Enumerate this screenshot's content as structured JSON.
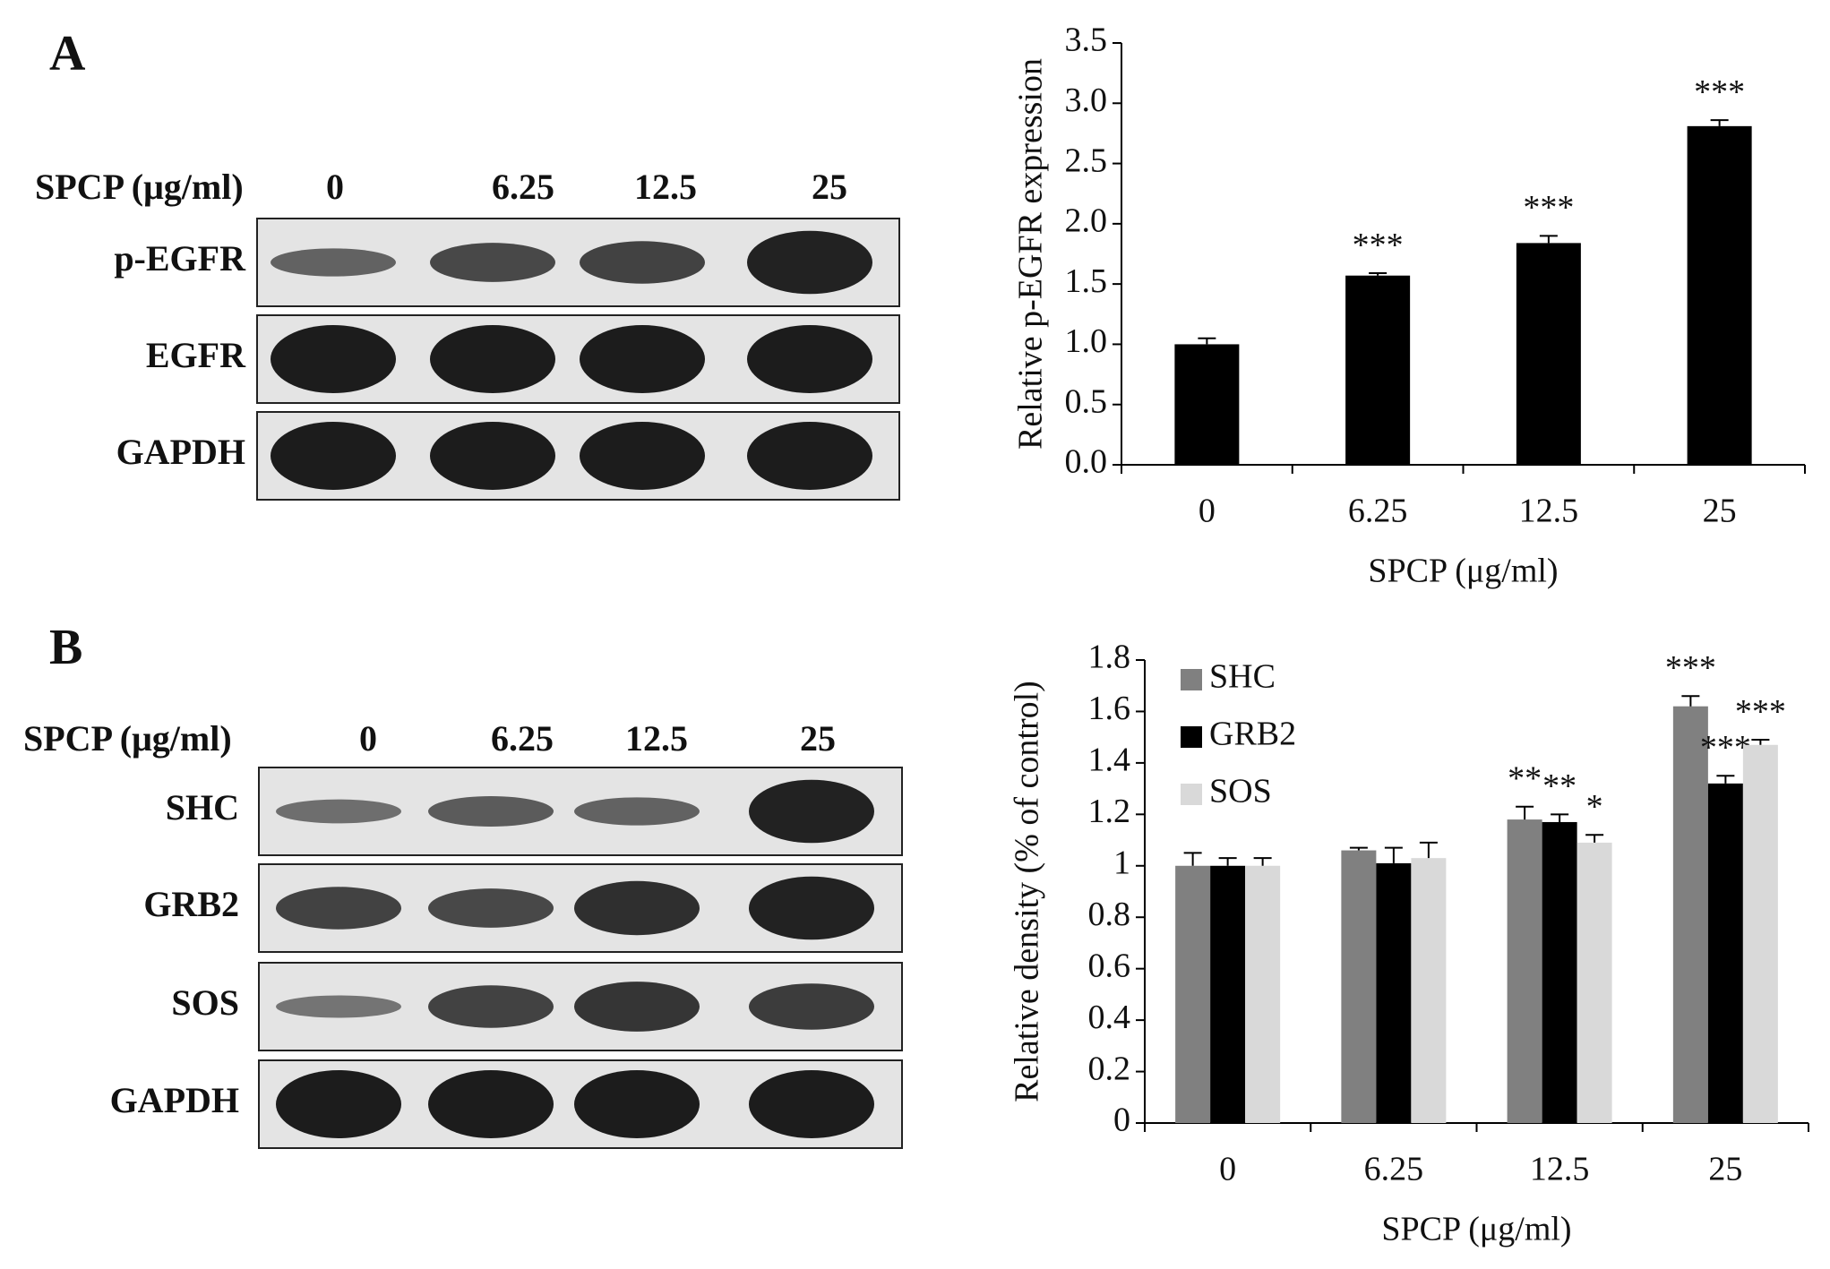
{
  "panels": [
    {
      "letter": "A",
      "treatment_label": "SPCP (μg/ml)",
      "lanes": [
        "0",
        "6.25",
        "12.5",
        "25"
      ],
      "rows": [
        "p-EGFR",
        "EGFR",
        "GAPDH"
      ]
    },
    {
      "letter": "B",
      "treatment_label": "SPCP (μg/ml)",
      "lanes": [
        "0",
        "6.25",
        "12.5",
        "25"
      ],
      "rows": [
        "SHC",
        "GRB2",
        "SOS",
        "GAPDH"
      ]
    }
  ],
  "chart_data": [
    {
      "type": "bar",
      "y_label": "Relative p-EGFR expression",
      "x_label": "SPCP (μg/ml)",
      "categories": [
        "0",
        "6.25",
        "12.5",
        "25"
      ],
      "values": [
        1.0,
        1.57,
        1.84,
        2.81
      ],
      "errors": [
        0.05,
        0.02,
        0.06,
        0.05
      ],
      "significance": [
        null,
        "***",
        "***",
        "***"
      ],
      "color": "#000000",
      "ylim": [
        0,
        3.5
      ],
      "yticks": [
        {
          "value": 0,
          "label": "0.0"
        },
        0.5,
        {
          "value": 1,
          "label": "1.0"
        },
        1.5,
        {
          "value": 2,
          "label": "2.0"
        },
        2.5,
        {
          "value": 3,
          "label": "3.0"
        },
        3.5
      ]
    },
    {
      "type": "bar",
      "y_label": "Relative density (% of control)",
      "x_label": "SPCP (μg/ml)",
      "categories": [
        "0",
        "6.25",
        "12.5",
        "25"
      ],
      "series": [
        {
          "name": "SHC",
          "color": "#808080",
          "values": [
            1.0,
            1.06,
            1.18,
            1.62
          ],
          "errors": [
            0.05,
            0.01,
            0.05,
            0.04
          ],
          "significance": [
            null,
            null,
            "**",
            "***"
          ]
        },
        {
          "name": "GRB2",
          "color": "#000000",
          "values": [
            1.0,
            1.01,
            1.17,
            1.32
          ],
          "errors": [
            0.03,
            0.06,
            0.03,
            0.03
          ],
          "significance": [
            null,
            null,
            "**",
            "***"
          ]
        },
        {
          "name": "SOS",
          "color": "#d9d9d9",
          "values": [
            1.0,
            1.03,
            1.09,
            1.47
          ],
          "errors": [
            0.03,
            0.06,
            0.03,
            0.02
          ],
          "significance": [
            null,
            null,
            "*",
            "***"
          ]
        }
      ],
      "legend": "top-left",
      "ylim": [
        0,
        1.8
      ],
      "yticks": [
        0,
        0.2,
        0.4,
        0.6,
        0.8,
        1,
        1.2,
        1.4,
        1.6,
        1.8
      ]
    }
  ]
}
